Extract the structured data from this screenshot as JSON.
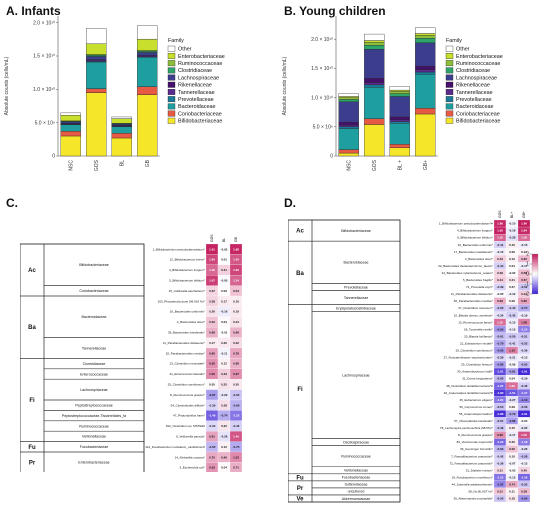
{
  "panels": {
    "a": "A. Infants",
    "b": "B. Young children",
    "c": "C.",
    "d": "D."
  },
  "chart_data": [
    {
      "type": "bar",
      "panel": "A",
      "ylabel": "Absolute counts (cells/mL)",
      "yticks": [
        "0",
        "5.0 × 10⁹",
        "1.0 × 10¹⁰",
        "1.5 × 10¹⁰",
        "2.0 × 10¹⁰"
      ],
      "ylim": [
        0,
        21000000000
      ],
      "categories": [
        "NSC",
        "GOS",
        "BL",
        "GB"
      ],
      "legend_title": "Family",
      "series": [
        {
          "name": "Other",
          "values": [
            350000000.0,
            2300000000.0,
            250000000.0,
            2000000000.0
          ]
        },
        {
          "name": "Enterobacteriaceae",
          "values": [
            850000000.0,
            1600000000.0,
            700000000.0,
            1700000000.0
          ]
        },
        {
          "name": "Ruminococcaceae",
          "values": [
            50000000.0,
            100000000.0,
            40000000.0,
            100000000.0
          ]
        },
        {
          "name": "Clostridiaceae",
          "values": [
            100000000.0,
            200000000.0,
            100000000.0,
            200000000.0
          ]
        },
        {
          "name": "Lachnospiraceae",
          "values": [
            250000000.0,
            500000000.0,
            200000000.0,
            400000000.0
          ]
        },
        {
          "name": "Rikenellaceae",
          "values": [
            20000000.0,
            30000000.0,
            20000000.0,
            30000000.0
          ]
        },
        {
          "name": "Tannerellaceae",
          "values": [
            100000000.0,
            200000000.0,
            100000000.0,
            200000000.0
          ]
        },
        {
          "name": "Prevotellaceae",
          "values": [
            50000000.0,
            100000000.0,
            50000000.0,
            100000000.0
          ]
        },
        {
          "name": "Bacteroidaceae",
          "values": [
            1000000000.0,
            4000000000.0,
            1000000000.0,
            4400000000.0
          ]
        },
        {
          "name": "Coriobacteriaceae",
          "values": [
            700000000.0,
            600000000.0,
            700000000.0,
            1200000000.0
          ]
        },
        {
          "name": "Bifidobacteriaceae",
          "values": [
            3000000000.0,
            9500000000.0,
            2700000000.0,
            9200000000.0
          ]
        }
      ]
    },
    {
      "type": "bar",
      "panel": "B",
      "ylabel": "Absolute counts (cells/mL)",
      "yticks": [
        "0",
        "5.0 × 10⁹",
        "1.0 × 10¹⁰",
        "1.5 × 10¹⁰",
        "2.0 × 10¹⁰"
      ],
      "ylim": [
        0,
        24000000000
      ],
      "categories": [
        "NSC",
        "GOS",
        "BL +",
        "GB+"
      ],
      "legend_title": "Family",
      "series": [
        {
          "name": "Other",
          "values": [
            500000000.0,
            1100000000.0,
            600000000.0,
            1000000000.0
          ]
        },
        {
          "name": "Enterobacteriaceae",
          "values": [
            200000000.0,
            300000000.0,
            200000000.0,
            300000000.0
          ]
        },
        {
          "name": "Ruminococcaceae",
          "values": [
            300000000.0,
            500000000.0,
            400000000.0,
            500000000.0
          ]
        },
        {
          "name": "Clostridiaceae",
          "values": [
            400000000.0,
            700000000.0,
            500000000.0,
            800000000.0
          ]
        },
        {
          "name": "Lachnospiraceae",
          "values": [
            3500000000.0,
            5000000000.0,
            3500000000.0,
            4000000000.0
          ]
        },
        {
          "name": "Rikenellaceae",
          "values": [
            500000000.0,
            700000000.0,
            500000000.0,
            600000000.0
          ]
        },
        {
          "name": "Tannerellaceae",
          "values": [
            300000000.0,
            400000000.0,
            300000000.0,
            400000000.0
          ]
        },
        {
          "name": "Prevotellaceae",
          "values": [
            300000000.0,
            400000000.0,
            300000000.0,
            400000000.0
          ]
        },
        {
          "name": "Bacteroidaceae",
          "values": [
            3600000000.0,
            5400000000.0,
            3600000000.0,
            5800000000.0
          ]
        },
        {
          "name": "Coriobacteriaceae",
          "values": [
            600000000.0,
            1000000000.0,
            600000000.0,
            1000000000.0
          ]
        },
        {
          "name": "Bifidobacteriaceae",
          "values": [
            500000000.0,
            5400000000.0,
            1400000000.0,
            7200000000.0
          ]
        }
      ]
    },
    {
      "type": "heatmap",
      "panel": "C",
      "columns": [
        "GOS",
        "BL",
        "GB"
      ],
      "rows": [
        {
          "phylum": "Ac",
          "family": "Bifidobacteriaceae",
          "taxon": "1_Bifidobacterium pseudocatenulatum*",
          "v": [
            1.91,
            -0.02,
            1.88
          ]
        },
        {
          "phylum": "Ac",
          "family": "Bifidobacteriaceae",
          "taxon": "12_Bifidobacterium breve*",
          "v": [
            1.6,
            0.01,
            1.45
          ]
        },
        {
          "phylum": "Ac",
          "family": "Bifidobacteriaceae",
          "taxon": "4_Bifidobacterium longum*",
          "v": [
            1.3,
            0.41,
            1.6
          ]
        },
        {
          "phylum": "Ac",
          "family": "Bifidobacteriaceae",
          "taxon": "5_Bifidobacterium bifidum*",
          "v": [
            1.67,
            -0.05,
            1.34
          ]
        },
        {
          "phylum": "Ac",
          "family": "Coriobacteriaceae",
          "taxon": "15_Collinsella aerofaciens*",
          "v": [
            0.37,
            0.03,
            0.54
          ]
        },
        {
          "phylum": "Ba",
          "family": "Bacteroidaceae",
          "taxon": "103_Phocaeicola dorei (96.919 %)*",
          "v": [
            0.38,
            0.17,
            0.16
          ]
        },
        {
          "phylum": "Ba",
          "family": "Bacteroidaceae",
          "taxon": "16_Bacteroides uniformis*",
          "v": [
            0.26,
            -0.16,
            0.19
          ]
        },
        {
          "phylum": "Ba",
          "family": "Bacteroidaceae",
          "taxon": "2_Bacteroides dorei*",
          "v": [
            0.52,
            0.04,
            0.24
          ]
        },
        {
          "phylum": "Ba",
          "family": "Bacteroidaceae",
          "taxon": "39_Bacteroides intestinalis*",
          "v": [
            0.68,
            -0.01,
            0.66
          ]
        },
        {
          "phylum": "Ba",
          "family": "Tannerellaceae",
          "taxon": "11_Parabacteroides distasonis*",
          "v": [
            0.17,
            0.2,
            0.32
          ]
        },
        {
          "phylum": "Ba",
          "family": "Tannerellaceae",
          "taxon": "52_Parabacteroides merdae*",
          "v": [
            0.8,
            -0.11,
            0.78
          ]
        },
        {
          "phylum": "Fi",
          "family": "Clostridiaceae",
          "taxon": "23_Clostridium neonatale*",
          "v": [
            0.95,
            0.12,
            0.68
          ]
        },
        {
          "phylum": "Fi",
          "family": "Enterococcaceae",
          "taxon": "41_Enterococcus faecalis*",
          "v": [
            1.0,
            0.43,
            0.97
          ]
        },
        {
          "phylum": "Fi",
          "family": "Lachnospiraceae",
          "taxon": "25_Clostridium symbiosum*",
          "v": [
            0.05,
            0.25,
            0.2
          ]
        },
        {
          "phylum": "Fi",
          "family": "Lachnospiraceae",
          "taxon": "8_Ruminococcus gnavus*",
          "v": [
            -0.87,
            -0.22,
            -0.52
          ]
        },
        {
          "phylum": "Fi",
          "family": "Peptostreptococcaceae",
          "taxon": "54_Clostridioides difficile*",
          "v": [
            -0.39,
            0.28,
            -0.69
          ]
        },
        {
          "phylum": "Fi",
          "family": "Peptostreptococcaceae-Tissierellales_fa",
          "taxon": "47_Peptoniphilus harei*",
          "v": [
            -1.4,
            -0.74,
            -1.22
          ]
        },
        {
          "phylum": "Fi",
          "family": "Ruminococcaceae",
          "taxon": "102_Clostridium sp. MSTE9#",
          "v": [
            -0.34,
            0.22,
            -0.42
          ]
        },
        {
          "phylum": "Fi",
          "family": "Veillonellaceae",
          "taxon": "6_Veillonella parvula*",
          "v": [
            0.81,
            -0.26,
            1.46
          ]
        },
        {
          "phylum": "Fu",
          "family": "Fusobacteriaceae",
          "taxon": "114_Fusobacterium nucleatum_canifelinum#",
          "v": [
            -0.65,
            0.12,
            -0.75
          ]
        },
        {
          "phylum": "Pr",
          "family": "Enterobacteriaceae",
          "taxon": "14_Klebsiella oxytoca*",
          "v": [
            0.75,
            0.66,
            1.02
          ]
        },
        {
          "phylum": "Pr",
          "family": "Enterobacteriaceae",
          "taxon": "3_Escherichia coli*",
          "v": [
            0.93,
            0.04,
            0.71
          ]
        }
      ]
    },
    {
      "type": "heatmap",
      "panel": "D",
      "columns": [
        "GOS",
        "BL+",
        "GB+"
      ],
      "legend_ticks": [
        "2",
        "1",
        "0",
        "-1",
        "-2"
      ],
      "rows": [
        {
          "phylum": "Ac",
          "family": "Bifidobacteriaceae",
          "taxon": "1_Bifidobacterium pseudocatenulatum*#",
          "v": [
            1.86,
            -0.1,
            1.96
          ]
        },
        {
          "phylum": "Ac",
          "family": "Bifidobacteriaceae",
          "taxon": "4_Bifidobacterium longum*",
          "v": [
            1.92,
            -0.18,
            1.84
          ]
        },
        {
          "phylum": "Ac",
          "family": "Bifidobacteriaceae",
          "taxon": "9_Bifidobacterium bifidum*",
          "v": [
            1.35,
            -0.28,
            1.26
          ]
        },
        {
          "phylum": "Ba",
          "family": "Bacteroidaceae",
          "taxon": "16_Bacteroides uniformis*",
          "v": [
            -0.41,
            0.15,
            -0.15
          ]
        },
        {
          "phylum": "Ba",
          "family": "Bacteroidaceae",
          "taxon": "17_Bacteroides massiliensis*",
          "v": [
            -0.15,
            0.06,
            0.12
          ]
        },
        {
          "phylum": "Ba",
          "family": "Bacteroidaceae",
          "taxon": "2_Bacteroides dorei*",
          "v": [
            0.43,
            0.12,
            0.62
          ]
        },
        {
          "phylum": "Ba",
          "family": "Bacteroidaceae",
          "taxon": "22_Bacteroides thetaiotaomicron_faecis*",
          "v": [
            -0.44,
            0.04,
            -0.17
          ]
        },
        {
          "phylum": "Ba",
          "family": "Bacteroidaceae",
          "taxon": "24_Bacteroides xylanisolvens_ovatus*",
          "v": [
            0.39,
            -0.02,
            0.58
          ]
        },
        {
          "phylum": "Ba",
          "family": "Bacteroidaceae",
          "taxon": "5_Bacteroides fragilis*",
          "v": [
            0.44,
            0.21,
            0.67
          ]
        },
        {
          "phylum": "Ba",
          "family": "Prevotellaceae",
          "taxon": "74_Prevotella copri*",
          "v": [
            -0.39,
            0.07,
            -0.52
          ]
        },
        {
          "phylum": "Ba",
          "family": "Tannerellaceae",
          "taxon": "11_Parabacteroides distasonis*",
          "v": [
            -0.05,
            -0.12,
            0.44
          ]
        },
        {
          "phylum": "Ba",
          "family": "Tannerellaceae",
          "taxon": "52_Parabacteroides merdae*",
          "v": [
            0.69,
            0.09,
            0.8
          ]
        },
        {
          "phylum": "Fi",
          "family": "Erysipelatoclostridiaceae",
          "taxon": "37_Clostridium ramosum*",
          "v": [
            -0.52,
            -0.43,
            -0.74
          ]
        },
        {
          "phylum": "Fi",
          "family": "Lachnospiraceae",
          "taxon": "10_Blautia obeum_wexlerae*",
          "v": [
            -0.26,
            -0.42,
            -0.19
          ]
        },
        {
          "phylum": "Fi",
          "family": "Lachnospiraceae",
          "taxon": "13_Ruminococcus faecis*",
          "v": [
            1.25,
            -0.15,
            1.08
          ]
        },
        {
          "phylum": "Fi",
          "family": "Lachnospiraceae",
          "taxon": "18_Tyzzerella nexilis*",
          "v": [
            -0.93,
            -0.15,
            -1.14
          ]
        },
        {
          "phylum": "Fi",
          "family": "Lachnospiraceae",
          "taxon": "20_Blautia luti/faecis*",
          "v": [
            -0.61,
            -0.5,
            -0.51
          ]
        },
        {
          "phylum": "Fi",
          "family": "Lachnospiraceae",
          "taxon": "21_Eubacterium rectale*",
          "v": [
            -0.79,
            -0.41,
            -0.52
          ]
        },
        {
          "phylum": "Fi",
          "family": "Lachnospiraceae",
          "taxon": "25_Clostridium symbiosum*",
          "v": [
            -0.9,
            1.1,
            -0.36
          ]
        },
        {
          "phylum": "Fi",
          "family": "Lachnospiraceae",
          "taxon": "27_Fusicatenibacter saccharivorans*",
          "v": [
            -0.39,
            -0.21,
            -0.13
          ]
        },
        {
          "phylum": "Fi",
          "family": "Lachnospiraceae",
          "taxon": "29_Clostridium fessum*",
          "v": [
            -0.86,
            -0.09,
            -0.62
          ]
        },
        {
          "phylum": "Fi",
          "family": "Lachnospiraceae",
          "taxon": "30_Anaerobutyricum hallii*",
          "v": [
            -1.61,
            -0.81,
            -1.91
          ]
        },
        {
          "phylum": "Fi",
          "family": "Lachnospiraceae",
          "taxon": "31_Dorea longicatena*",
          "v": [
            -0.65,
            0.04,
            -0.19
          ]
        },
        {
          "phylum": "Fi",
          "family": "Lachnospiraceae",
          "taxon": "38_Clostridium lactatifermentans*#",
          "v": [
            -1.37,
            1.26,
            -0.45
          ]
        },
        {
          "phylum": "Fi",
          "family": "Lachnospiraceae",
          "taxon": "40_Anaerostipes lactatifermentans*#",
          "v": [
            -1.83,
            -1.51,
            -1.27
          ]
        },
        {
          "phylum": "Fi",
          "family": "Lachnospiraceae",
          "taxon": "45_Eubacterium eligens*",
          "v": [
            -1.21,
            -0.27,
            -1.1
          ]
        },
        {
          "phylum": "Fi",
          "family": "Lachnospiraceae",
          "taxon": "50_Coprococcus comes*",
          "v": [
            -0.54,
            0.09,
            -0.56
          ]
        },
        {
          "phylum": "Fi",
          "family": "Lachnospiraceae",
          "taxon": "55_Anaerostipes hadrus*",
          "v": [
            -1.86,
            -0.79,
            -1.91
          ]
        },
        {
          "phylum": "Fi",
          "family": "Lachnospiraceae",
          "taxon": "57_Oliverpabstia intestinalis*",
          "v": [
            -0.51,
            -0.88,
            -0.04
          ]
        },
        {
          "phylum": "Fi",
          "family": "Lachnospiraceae",
          "taxon": "78_Lachnospira pectinoschiza (98.5%)*",
          "v": [
            -0.49,
            0.15,
            -0.22
          ]
        },
        {
          "phylum": "Fi",
          "family": "Lachnospiraceae",
          "taxon": "8_Ruminococcus gnavus*",
          "v": [
            0.96,
            -0.17,
            1.5
          ]
        },
        {
          "phylum": "Fi",
          "family": "Oscillospiraceae",
          "taxon": "83_Vescimonas coprocola*",
          "v": [
            -1.34,
            0.2,
            -1.18
          ]
        },
        {
          "phylum": "Fi",
          "family": "Ruminococcaceae",
          "taxon": "36_Gemmiger formicilis*",
          "v": [
            -0.63,
            0.52,
            -0.26
          ]
        },
        {
          "phylum": "Fi",
          "family": "Ruminococcaceae",
          "taxon": "7_Faecalibacterium prausnitzii*",
          "v": [
            -0.42,
            0.1,
            -0.58
          ]
        },
        {
          "phylum": "Fi",
          "family": "Ruminococcaceae",
          "taxon": "72_Faecalibacterium prausnitzii*",
          "v": [
            -0.36,
            -0.07,
            -0.12
          ]
        },
        {
          "phylum": "Fi",
          "family": "Veillonellaceae",
          "taxon": "51_Dialister invisus*",
          "v": [
            0.31,
            -0.03,
            0.4
          ]
        },
        {
          "phylum": "Fu",
          "family": "Fusobacteriaceae",
          "taxon": "19_Fusobacterium mortiferum*",
          "v": [
            -1.22,
            -0.13,
            -1.36
          ]
        },
        {
          "phylum": "Pr",
          "family": "Sutterellaceae",
          "taxon": "44_Sutterella wadsworthensis*",
          "v": [
            -1.07,
            0.74,
            -0.52
          ]
        },
        {
          "phylum": "Pr",
          "family": "uncultured",
          "taxon": "58_No BLAST hit*",
          "v": [
            0.51,
            0.11,
            0.58
          ]
        },
        {
          "phylum": "Ve",
          "family": "Akkermansiaceae",
          "taxon": "35_Akkermansia muciniphila*",
          "v": [
            -0.5,
            0.18,
            -0.94
          ]
        }
      ]
    }
  ],
  "colors": {
    "Other": "#ffffff",
    "Enterobacteriaceae": "#c8e02c",
    "Ruminococcaceae": "#8fbf3a",
    "Clostridiaceae": "#2ca46a",
    "Lachnospiraceae": "#3c3d8c",
    "Rikenellaceae": "#45106b",
    "Tannerellaceae": "#5a2a8c",
    "Prevotellaceae": "#1d7a9a",
    "Bacteroidaceae": "#1f9ea0",
    "Coriobacteriaceae": "#e65a44",
    "Bifidobacteriaceae": "#f5e62a",
    "heat_pos": "#c2185b",
    "heat_neg": "#3a1fd6",
    "heat_mid": "#ffffff"
  }
}
